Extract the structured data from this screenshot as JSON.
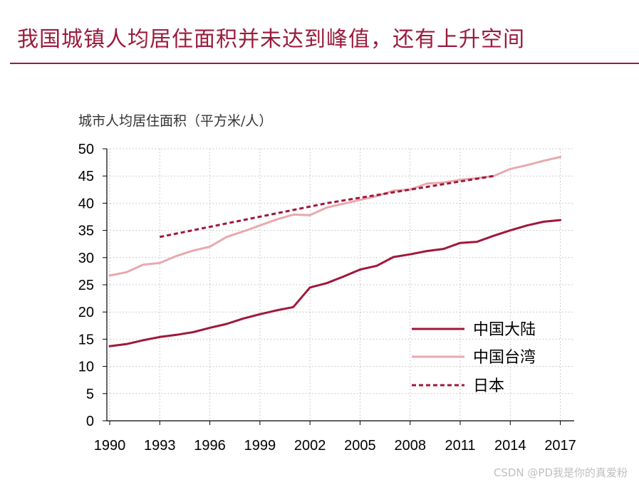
{
  "page": {
    "title": "我国城镇人均居住面积并未达到峰值，还有上升空间",
    "watermark": "CSDN @PD我是你的真爱粉"
  },
  "colors": {
    "accent": "#9b1b3d",
    "mainland": "#a0173b",
    "taiwan": "#e8a9ad",
    "japan": "#a0173b"
  },
  "chart_data": {
    "type": "line",
    "title": "",
    "ylabel": "城市人均居住面积（平方米/人）",
    "xlabel": "",
    "ylim": [
      0,
      50
    ],
    "yticks": [
      0,
      5,
      10,
      15,
      20,
      25,
      30,
      35,
      40,
      45,
      50
    ],
    "xlim": [
      1990,
      2018
    ],
    "xticks": [
      1990,
      1993,
      1996,
      1999,
      2002,
      2005,
      2008,
      2011,
      2014,
      2017
    ],
    "grid": true,
    "legend_position": "lower-right",
    "series": [
      {
        "name": "中国大陆",
        "style": "solid",
        "x": [
          1990,
          1991,
          1992,
          1993,
          1994,
          1995,
          1996,
          1997,
          1998,
          1999,
          2000,
          2001,
          2002,
          2003,
          2004,
          2005,
          2006,
          2007,
          2008,
          2009,
          2010,
          2011,
          2012,
          2013,
          2014,
          2015,
          2016,
          2017
        ],
        "values": [
          13.7,
          14.1,
          14.8,
          15.4,
          15.8,
          16.3,
          17.1,
          17.8,
          18.8,
          19.6,
          20.3,
          20.9,
          24.5,
          25.3,
          26.5,
          27.8,
          28.5,
          30.1,
          30.6,
          31.2,
          31.6,
          32.7,
          32.9,
          34.0,
          35.0,
          35.9,
          36.6,
          36.9
        ]
      },
      {
        "name": "中国台湾",
        "style": "solid",
        "x": [
          1990,
          1991,
          1992,
          1993,
          1994,
          1995,
          1996,
          1997,
          1998,
          1999,
          2000,
          2001,
          2002,
          2003,
          2004,
          2005,
          2006,
          2007,
          2008,
          2009,
          2010,
          2011,
          2012,
          2013,
          2014,
          2015,
          2016,
          2017
        ],
        "values": [
          26.7,
          27.3,
          28.7,
          29.0,
          30.3,
          31.3,
          32.0,
          33.8,
          34.8,
          35.9,
          37.0,
          37.9,
          37.8,
          39.2,
          39.9,
          40.6,
          41.3,
          42.3,
          42.5,
          43.6,
          43.8,
          44.3,
          44.6,
          45.0,
          46.3,
          47.0,
          47.8,
          48.5
        ]
      },
      {
        "name": "日本",
        "style": "dashed",
        "x": [
          1993,
          1998,
          2003,
          2008,
          2013
        ],
        "values": [
          33.8,
          36.9,
          40.0,
          42.5,
          45.0
        ]
      }
    ]
  }
}
